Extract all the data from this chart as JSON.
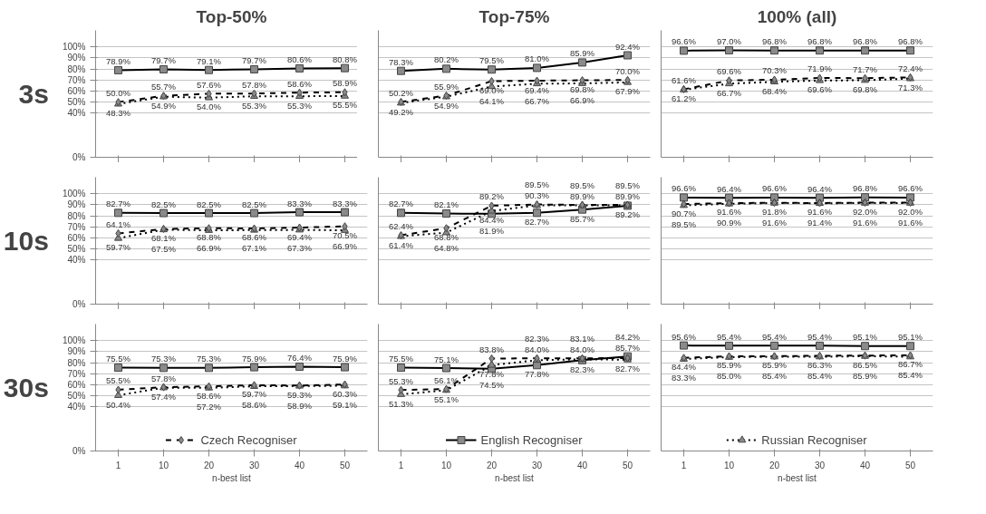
{
  "chart_data": [
    {
      "type": "line",
      "title": "Top-50%",
      "ylabel": "3s",
      "categories": [
        "1",
        "10",
        "20",
        "30",
        "40",
        "50"
      ],
      "ylim": [
        0,
        115
      ],
      "yticks": [
        {
          "value": 0,
          "label": "0%"
        },
        {
          "value": 40,
          "label": "40%"
        },
        {
          "value": 50,
          "label": "50%"
        },
        {
          "value": 60,
          "label": "60%"
        },
        {
          "value": 70,
          "label": "70%"
        },
        {
          "value": 80,
          "label": "80%"
        },
        {
          "value": 90,
          "label": "90%"
        },
        {
          "value": 100,
          "label": "100%"
        }
      ],
      "grid": "y",
      "tick_labels": "y",
      "series": [
        {
          "color": "#000000",
          "marker": "diamond",
          "line_style": "dashed",
          "values": [
            50.0,
            55.7,
            57.6,
            57.8,
            58.6,
            58.9
          ],
          "value_labels": [
            "50.0%",
            "55.7%",
            "57.6%",
            "57.8%",
            "58.6%",
            "58.9%"
          ]
        },
        {
          "color": "#000000",
          "marker": "square",
          "line_style": "solid",
          "values": [
            78.9,
            79.7,
            79.1,
            79.7,
            80.6,
            80.8
          ],
          "value_labels": [
            "78.9%",
            "79.7%",
            "79.1%",
            "79.7%",
            "80.6%",
            "80.8%"
          ]
        },
        {
          "color": "#000000",
          "marker": "triangle",
          "line_style": "dotted",
          "values": [
            48.3,
            54.9,
            54.0,
            55.3,
            55.3,
            55.5
          ],
          "value_labels": [
            "48.3%",
            "54.9%",
            "54.0%",
            "55.3%",
            "55.3%",
            "55.5%"
          ]
        }
      ]
    },
    {
      "type": "line",
      "title": "Top-75%",
      "categories": [
        "1",
        "10",
        "20",
        "30",
        "40",
        "50"
      ],
      "ylim": [
        0,
        115
      ],
      "yticks": [
        0,
        40,
        50,
        60,
        70,
        80,
        90,
        100
      ],
      "grid": "y",
      "tick_labels": false,
      "series": [
        {
          "color": "#000000",
          "marker": "diamond",
          "line_style": "dashed",
          "values": [
            50.2,
            55.9,
            69.0,
            69.4,
            69.8,
            70.0
          ],
          "value_labels": [
            "50.2%",
            "55.9%",
            "69.0%",
            "69.4%",
            "69.8%",
            "70.0%"
          ]
        },
        {
          "color": "#000000",
          "marker": "square",
          "line_style": "solid",
          "values": [
            78.3,
            80.2,
            79.5,
            81.0,
            85.9,
            92.4
          ],
          "value_labels": [
            "78.3%",
            "80.2%",
            "79.5%",
            "81.0%",
            "85.9%",
            "92.4%"
          ]
        },
        {
          "color": "#000000",
          "marker": "triangle",
          "line_style": "dotted",
          "values": [
            49.2,
            54.9,
            64.1,
            66.7,
            66.9,
            67.9
          ],
          "value_labels": [
            "49.2%",
            "54.9%",
            "64.1%",
            "66.7%",
            "66.9%",
            "67.9%"
          ]
        }
      ]
    },
    {
      "type": "line",
      "title": "100% (all)",
      "categories": [
        "1",
        "10",
        "20",
        "30",
        "40",
        "50"
      ],
      "ylim": [
        0,
        115
      ],
      "yticks": [
        0,
        40,
        50,
        60,
        70,
        80,
        90,
        100
      ],
      "grid": "y",
      "tick_labels": false,
      "series": [
        {
          "color": "#000000",
          "marker": "diamond",
          "line_style": "dashed",
          "values": [
            61.6,
            69.6,
            70.3,
            71.9,
            71.7,
            72.4
          ],
          "value_labels": [
            "61.6%",
            "69.6%",
            "70.3%",
            "71.9%",
            "71.7%",
            "72.4%"
          ]
        },
        {
          "color": "#000000",
          "marker": "square",
          "line_style": "solid",
          "values": [
            96.6,
            97.0,
            96.8,
            96.8,
            96.8,
            96.8
          ],
          "value_labels": [
            "96.6%",
            "97.0%",
            "96.8%",
            "96.8%",
            "96.8%",
            "96.8%"
          ]
        },
        {
          "color": "#000000",
          "marker": "triangle",
          "line_style": "dotted",
          "values": [
            61.2,
            66.7,
            68.4,
            69.6,
            69.8,
            71.3
          ],
          "value_labels": [
            "61.2%",
            "66.7%",
            "68.4%",
            "69.6%",
            "69.8%",
            "71.3%"
          ]
        }
      ]
    },
    {
      "type": "line",
      "ylabel": "10s",
      "categories": [
        "1",
        "10",
        "20",
        "30",
        "40",
        "50"
      ],
      "ylim": [
        0,
        115
      ],
      "yticks": [
        {
          "value": 0,
          "label": "0%"
        },
        {
          "value": 40,
          "label": "40%"
        },
        {
          "value": 50,
          "label": "50%"
        },
        {
          "value": 60,
          "label": "60%"
        },
        {
          "value": 70,
          "label": "70%"
        },
        {
          "value": 80,
          "label": "80%"
        },
        {
          "value": 90,
          "label": "90%"
        },
        {
          "value": 100,
          "label": "100%"
        }
      ],
      "grid": "y",
      "tick_labels": "y",
      "series": [
        {
          "color": "#000000",
          "marker": "diamond",
          "line_style": "dashed",
          "values": [
            64.1,
            68.1,
            68.8,
            68.6,
            69.4,
            70.5
          ],
          "value_labels": [
            "64.1%",
            "68.1%",
            "68.8%",
            "68.6%",
            "69.4%",
            "70.5%"
          ]
        },
        {
          "color": "#000000",
          "marker": "square",
          "line_style": "solid",
          "values": [
            82.7,
            82.5,
            82.5,
            82.5,
            83.3,
            83.3
          ],
          "value_labels": [
            "82.7%",
            "82.5%",
            "82.5%",
            "82.5%",
            "83.3%",
            "83.3%"
          ]
        },
        {
          "color": "#000000",
          "marker": "triangle",
          "line_style": "dotted",
          "values": [
            59.7,
            67.5,
            66.9,
            67.1,
            67.3,
            66.9
          ],
          "value_labels": [
            "59.7%",
            "67.5%",
            "66.9%",
            "67.1%",
            "67.3%",
            "66.9%"
          ]
        }
      ]
    },
    {
      "type": "line",
      "categories": [
        "1",
        "10",
        "20",
        "30",
        "40",
        "50"
      ],
      "ylim": [
        0,
        115
      ],
      "yticks": [
        0,
        40,
        50,
        60,
        70,
        80,
        90,
        100
      ],
      "grid": "y",
      "tick_labels": false,
      "series": [
        {
          "color": "#000000",
          "marker": "diamond",
          "line_style": "dashed",
          "values": [
            62.4,
            68.8,
            89.2,
            90.3,
            89.9,
            89.9
          ],
          "value_labels": [
            "62.4%",
            "68.8%",
            "89.2%",
            "90.3%",
            "89.9%",
            "89.9%"
          ]
        },
        {
          "color": "#000000",
          "marker": "square",
          "line_style": "solid",
          "values": [
            82.7,
            82.1,
            81.9,
            82.7,
            85.7,
            89.2
          ],
          "value_labels": [
            "82.7%",
            "82.1%",
            "81.9%",
            "82.7%",
            "85.7%",
            "89.2%"
          ]
        },
        {
          "color": "#000000",
          "marker": "triangle",
          "line_style": "dotted",
          "values": [
            61.4,
            64.8,
            84.4,
            89.5,
            89.5,
            89.5
          ],
          "value_labels": [
            "61.4%",
            "64.8%",
            "84.4%",
            "89.5%",
            "89.5%",
            "89.5%"
          ]
        }
      ]
    },
    {
      "type": "line",
      "categories": [
        "1",
        "10",
        "20",
        "30",
        "40",
        "50"
      ],
      "ylim": [
        0,
        115
      ],
      "yticks": [
        0,
        40,
        50,
        60,
        70,
        80,
        90,
        100
      ],
      "grid": "y",
      "tick_labels": false,
      "series": [
        {
          "color": "#000000",
          "marker": "diamond",
          "line_style": "dashed",
          "values": [
            90.7,
            91.6,
            91.8,
            91.6,
            92.0,
            92.0
          ],
          "value_labels": [
            "90.7%",
            "91.6%",
            "91.8%",
            "91.6%",
            "92.0%",
            "92.0%"
          ]
        },
        {
          "color": "#000000",
          "marker": "square",
          "line_style": "solid",
          "values": [
            96.6,
            96.4,
            96.6,
            96.4,
            96.8,
            96.6
          ],
          "value_labels": [
            "96.6%",
            "96.4%",
            "96.6%",
            "96.4%",
            "96.8%",
            "96.6%"
          ]
        },
        {
          "color": "#000000",
          "marker": "triangle",
          "line_style": "dotted",
          "values": [
            89.5,
            90.9,
            91.6,
            91.4,
            91.6,
            91.6
          ],
          "value_labels": [
            "89.5%",
            "90.9%",
            "91.6%",
            "91.4%",
            "91.6%",
            "91.6%"
          ]
        }
      ]
    },
    {
      "type": "line",
      "ylabel": "30s",
      "xlabel": "n-best list",
      "categories": [
        "1",
        "10",
        "20",
        "30",
        "40",
        "50"
      ],
      "ylim": [
        0,
        115
      ],
      "yticks": [
        {
          "value": 0,
          "label": "0%"
        },
        {
          "value": 40,
          "label": "40%"
        },
        {
          "value": 50,
          "label": "50%"
        },
        {
          "value": 60,
          "label": "60%"
        },
        {
          "value": 70,
          "label": "70%"
        },
        {
          "value": 80,
          "label": "80%"
        },
        {
          "value": 90,
          "label": "90%"
        },
        {
          "value": 100,
          "label": "100%"
        }
      ],
      "grid": "y",
      "legend": "bottom",
      "series": [
        {
          "name": "Czech Recogniser",
          "color": "#000000",
          "marker": "diamond",
          "line_style": "dashed",
          "values": [
            55.5,
            57.8,
            58.6,
            59.7,
            59.3,
            60.3
          ],
          "value_labels": [
            "55.5%",
            "57.8%",
            "58.6%",
            "59.7%",
            "59.3%",
            "60.3%"
          ]
        },
        {
          "color": "#000000",
          "marker": "square",
          "line_style": "solid",
          "values": [
            75.5,
            75.3,
            75.3,
            75.9,
            76.4,
            75.9
          ],
          "value_labels": [
            "75.5%",
            "75.3%",
            "75.3%",
            "75.9%",
            "76.4%",
            "75.9%"
          ]
        },
        {
          "color": "#000000",
          "marker": "triangle",
          "line_style": "dotted",
          "values": [
            50.4,
            57.4,
            57.2,
            58.6,
            58.9,
            59.1
          ],
          "value_labels": [
            "50.4%",
            "57.4%",
            "57.2%",
            "58.6%",
            "58.9%",
            "59.1%"
          ]
        }
      ]
    },
    {
      "type": "line",
      "xlabel": "n-best list",
      "categories": [
        "1",
        "10",
        "20",
        "30",
        "40",
        "50"
      ],
      "ylim": [
        0,
        115
      ],
      "yticks": [
        0,
        40,
        50,
        60,
        70,
        80,
        90,
        100
      ],
      "grid": "y",
      "tick_labels": "x",
      "legend": "bottom",
      "series": [
        {
          "color": "#000000",
          "marker": "diamond",
          "line_style": "dashed",
          "values": [
            55.3,
            56.1,
            83.8,
            84.0,
            84.0,
            84.2
          ],
          "value_labels": [
            "55.3%",
            "56.1%",
            "83.8%",
            "84.0%",
            "84.0%",
            "84.2%"
          ]
        },
        {
          "name": "English Recogniser",
          "color": "#000000",
          "marker": "square",
          "line_style": "solid",
          "values": [
            75.5,
            75.1,
            74.5,
            77.8,
            82.3,
            85.7
          ],
          "value_labels": [
            "75.5%",
            "75.1%",
            "74.5%",
            "77.8%",
            "82.3%",
            "85.7%"
          ]
        },
        {
          "color": "#000000",
          "marker": "triangle",
          "line_style": "dotted",
          "values": [
            51.3,
            55.1,
            77.8,
            82.3,
            83.1,
            82.7
          ],
          "value_labels": [
            "51.3%",
            "55.1%",
            "77.8%",
            "82.3%",
            "83.1%",
            "82.7%"
          ]
        }
      ]
    },
    {
      "type": "line",
      "xlabel": "n-best list",
      "categories": [
        "1",
        "10",
        "20",
        "30",
        "40",
        "50"
      ],
      "ylim": [
        0,
        115
      ],
      "yticks": [
        0,
        40,
        50,
        60,
        70,
        80,
        90,
        100
      ],
      "grid": "y",
      "tick_labels": "x",
      "legend": "bottom",
      "series": [
        {
          "color": "#000000",
          "marker": "diamond",
          "line_style": "dashed",
          "values": [
            84.4,
            85.9,
            85.9,
            86.3,
            86.5,
            86.7
          ],
          "value_labels": [
            "84.4%",
            "85.9%",
            "85.9%",
            "86.3%",
            "86.5%",
            "86.7%"
          ]
        },
        {
          "color": "#000000",
          "marker": "square",
          "line_style": "solid",
          "values": [
            95.6,
            95.4,
            95.4,
            95.4,
            95.1,
            95.1
          ],
          "value_labels": [
            "95.6%",
            "95.4%",
            "95.4%",
            "95.4%",
            "95.1%",
            "95.1%"
          ]
        },
        {
          "name": "Russian Recogniser",
          "color": "#000000",
          "marker": "triangle",
          "line_style": "dotted",
          "values": [
            83.3,
            85.0,
            85.4,
            85.4,
            85.9,
            85.4
          ],
          "value_labels": [
            "83.3%",
            "85.0%",
            "85.4%",
            "85.4%",
            "85.9%",
            "85.4%"
          ]
        }
      ]
    }
  ]
}
